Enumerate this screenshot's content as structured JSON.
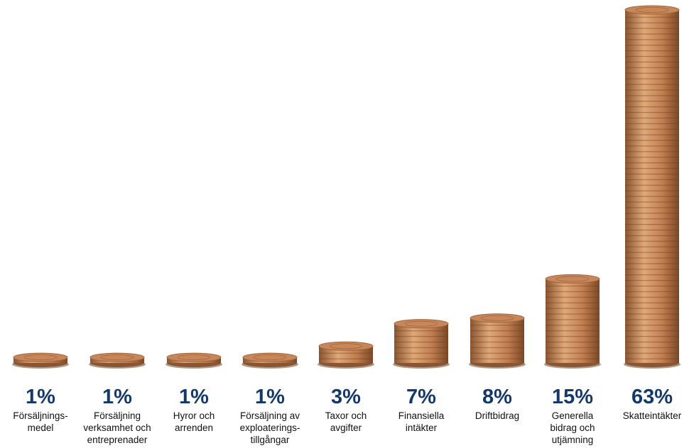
{
  "chart_data": {
    "type": "coin-stack",
    "categories": [
      "Försäljnings-\nmedel",
      "Försäljning\nverksamhet och\nentreprenader",
      "Hyror och\narrenden",
      "Försäljning av\nexploaterings-\ntillgångar",
      "Taxor och\navgifter",
      "Finansiella\nintäkter",
      "Driftbidrag",
      "Generella\nbidrag och\nutjämning",
      "Skatteintäkter"
    ],
    "values": [
      1,
      1,
      1,
      1,
      3,
      7,
      8,
      15,
      63
    ],
    "value_labels": [
      "1%",
      "1%",
      "1%",
      "1%",
      "3%",
      "7%",
      "8%",
      "15%",
      "63%"
    ],
    "color": "#c8875a"
  }
}
